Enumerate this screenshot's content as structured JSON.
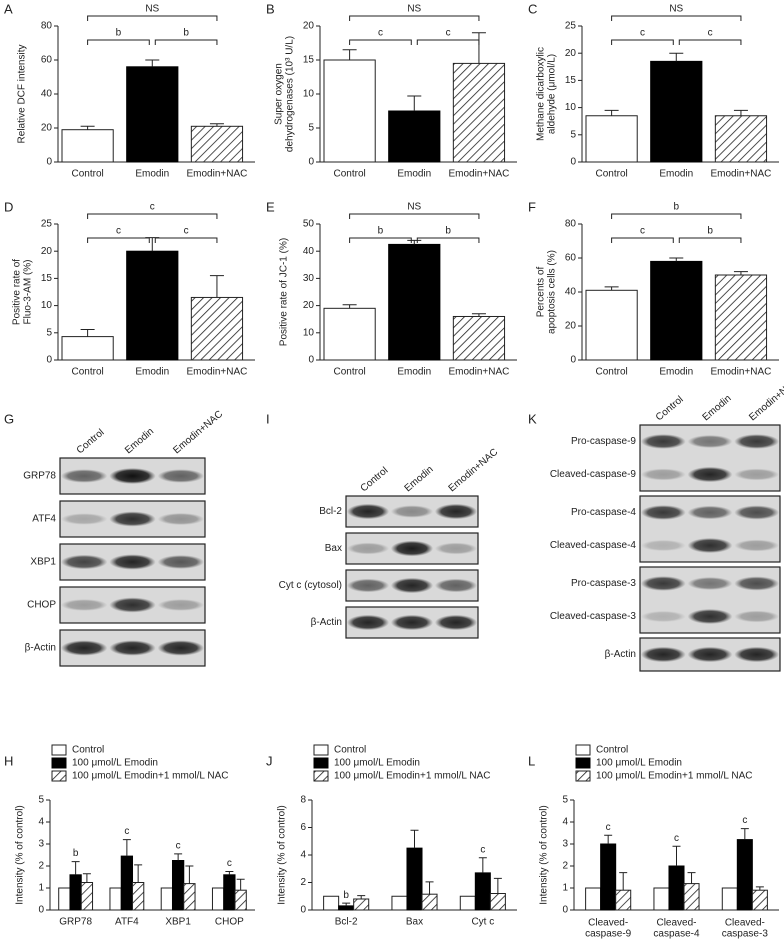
{
  "chart_data": [
    {
      "type": "bar",
      "panel": "A",
      "ylabel": "Relative DCF intensity",
      "categories": [
        "Control",
        "Emodin",
        "Emodin+NAC"
      ],
      "values": [
        19,
        56,
        21
      ],
      "errors": [
        2,
        4,
        1.5
      ],
      "styles": [
        "open",
        "solid",
        "hatched"
      ],
      "ylim": [
        0,
        80
      ],
      "yticks": [
        0,
        20,
        40,
        60,
        80
      ],
      "comparisons": [
        {
          "from": 0,
          "to": 1,
          "label": "b"
        },
        {
          "from": 1,
          "to": 2,
          "label": "b"
        },
        {
          "from": 0,
          "to": 2,
          "label": "NS"
        }
      ]
    },
    {
      "type": "bar",
      "panel": "B",
      "ylabel": "Super oxygen dehydrogenases (10³ U/L)",
      "categories": [
        "Control",
        "Emodin",
        "Emodin+NAC"
      ],
      "values": [
        15,
        7.5,
        14.5
      ],
      "errors": [
        1.5,
        2.2,
        4.5
      ],
      "styles": [
        "open",
        "solid",
        "hatched"
      ],
      "ylim": [
        0,
        20
      ],
      "yticks": [
        0,
        5,
        10,
        15,
        20
      ],
      "comparisons": [
        {
          "from": 0,
          "to": 1,
          "label": "c"
        },
        {
          "from": 1,
          "to": 2,
          "label": "c"
        },
        {
          "from": 0,
          "to": 2,
          "label": "NS"
        }
      ]
    },
    {
      "type": "bar",
      "panel": "C",
      "ylabel": "Methane dicarboxylic aldehyde (μmol/L)",
      "categories": [
        "Control",
        "Emodin",
        "Emodin+NAC"
      ],
      "values": [
        8.5,
        18.5,
        8.5
      ],
      "errors": [
        1,
        1.5,
        1
      ],
      "styles": [
        "open",
        "solid",
        "hatched"
      ],
      "ylim": [
        0,
        25
      ],
      "yticks": [
        0,
        5,
        10,
        15,
        20,
        25
      ],
      "comparisons": [
        {
          "from": 0,
          "to": 1,
          "label": "c"
        },
        {
          "from": 1,
          "to": 2,
          "label": "c"
        },
        {
          "from": 0,
          "to": 2,
          "label": "NS"
        }
      ]
    },
    {
      "type": "bar",
      "panel": "D",
      "ylabel": "Positive rate of Fluo-3-AM (%)",
      "categories": [
        "Control",
        "Emodin",
        "Emodin+NAC"
      ],
      "values": [
        4.3,
        20,
        11.5
      ],
      "errors": [
        1.3,
        2.5,
        4
      ],
      "styles": [
        "open",
        "solid",
        "hatched"
      ],
      "ylim": [
        0,
        25
      ],
      "yticks": [
        0,
        5,
        10,
        15,
        20,
        25
      ],
      "comparisons": [
        {
          "from": 0,
          "to": 1,
          "label": "c"
        },
        {
          "from": 1,
          "to": 2,
          "label": "c"
        },
        {
          "from": 0,
          "to": 2,
          "label": "c"
        }
      ]
    },
    {
      "type": "bar",
      "panel": "E",
      "ylabel": "Positive rate of JC-1 (%)",
      "categories": [
        "Control",
        "Emodin",
        "Emodin+NAC"
      ],
      "values": [
        19,
        42.5,
        16
      ],
      "errors": [
        1.3,
        1.5,
        1
      ],
      "styles": [
        "open",
        "solid",
        "hatched"
      ],
      "ylim": [
        0,
        50
      ],
      "yticks": [
        0,
        10,
        20,
        30,
        40,
        50
      ],
      "comparisons": [
        {
          "from": 0,
          "to": 1,
          "label": "b"
        },
        {
          "from": 1,
          "to": 2,
          "label": "b"
        },
        {
          "from": 0,
          "to": 2,
          "label": "NS"
        }
      ]
    },
    {
      "type": "bar",
      "panel": "F",
      "ylabel": "Percents of apoptosis cells (%)",
      "categories": [
        "Control",
        "Emodin",
        "Emodin+NAC"
      ],
      "values": [
        41,
        58,
        50
      ],
      "errors": [
        2,
        2,
        2
      ],
      "styles": [
        "open",
        "solid",
        "hatched"
      ],
      "ylim": [
        0,
        80
      ],
      "yticks": [
        0,
        20,
        40,
        60,
        80
      ],
      "comparisons": [
        {
          "from": 0,
          "to": 1,
          "label": "c"
        },
        {
          "from": 1,
          "to": 2,
          "label": "b"
        },
        {
          "from": 0,
          "to": 2,
          "label": "b"
        }
      ]
    },
    {
      "type": "grouped_bar",
      "panel": "H",
      "ylabel": "Intensity (% of control)",
      "categories": [
        "GRP78",
        "ATF4",
        "XBP1",
        "CHOP"
      ],
      "ylim": [
        0,
        5
      ],
      "yticks": [
        0,
        1,
        2,
        3,
        4,
        5
      ],
      "series": [
        {
          "name": "Control",
          "style": "open",
          "values": [
            1,
            1,
            1,
            1
          ]
        },
        {
          "name": "100 μmol/L Emodin",
          "style": "solid",
          "values": [
            1.6,
            2.45,
            2.25,
            1.6
          ],
          "errors": [
            0.6,
            0.75,
            0.3,
            0.15
          ],
          "labels": [
            "b",
            "c",
            "c",
            "c"
          ]
        },
        {
          "name": "100 μmol/L Emodin+1 mmol/L NAC",
          "style": "hatched",
          "values": [
            1.25,
            1.25,
            1.2,
            0.9
          ],
          "errors": [
            0.4,
            0.8,
            0.8,
            0.5
          ]
        }
      ]
    },
    {
      "type": "grouped_bar",
      "panel": "J",
      "ylabel": "Intensity (% of control)",
      "categories": [
        "Bcl-2",
        "Bax",
        "Cyt c"
      ],
      "ylim": [
        0,
        8
      ],
      "yticks": [
        0,
        2,
        4,
        6,
        8
      ],
      "series": [
        {
          "name": "Control",
          "style": "open",
          "values": [
            1,
            1,
            1
          ]
        },
        {
          "name": "100 μmol/L Emodin",
          "style": "solid",
          "values": [
            0.3,
            4.5,
            2.7
          ],
          "errors": [
            0.2,
            1.3,
            1.1
          ],
          "labels": [
            "b",
            null,
            "c"
          ]
        },
        {
          "name": "100 μmol/L Emodin+1 mmol/L NAC",
          "style": "hatched",
          "values": [
            0.8,
            1.15,
            1.2
          ],
          "errors": [
            0.25,
            0.9,
            1.1
          ]
        }
      ]
    },
    {
      "type": "grouped_bar",
      "panel": "L",
      "ylabel": "Intensity (% of control)",
      "categories": [
        "Cleaved-caspase-9",
        "Cleaved-caspase-4",
        "Cleaved-caspase-3"
      ],
      "ylim": [
        0,
        5
      ],
      "yticks": [
        0,
        1,
        2,
        3,
        4,
        5
      ],
      "series": [
        {
          "name": "Control",
          "style": "open",
          "values": [
            1,
            1,
            1
          ]
        },
        {
          "name": "100 μmol/L Emodin",
          "style": "solid",
          "values": [
            3,
            2,
            3.2
          ],
          "errors": [
            0.4,
            0.9,
            0.5
          ],
          "labels": [
            "c",
            "c",
            "c"
          ]
        },
        {
          "name": "100 μmol/L Emodin+1 mmol/L NAC",
          "style": "hatched",
          "values": [
            0.9,
            1.2,
            0.9
          ],
          "errors": [
            0.8,
            0.5,
            0.15
          ]
        }
      ]
    }
  ],
  "blots": [
    {
      "panel": "G",
      "lanes": [
        "Control",
        "Emodin",
        "Emodin+NAC"
      ],
      "boxes": [
        [
          "GRP78"
        ],
        [
          "ATF4"
        ],
        [
          "XBP1"
        ],
        [
          "CHOP"
        ],
        [
          "β-Actin"
        ]
      ]
    },
    {
      "panel": "I",
      "lanes": [
        "Control",
        "Emodin",
        "Emodin+NAC"
      ],
      "boxes": [
        [
          "Bcl-2"
        ],
        [
          "Bax"
        ],
        [
          "Cyt c (cytosol)"
        ],
        [
          "β-Actin"
        ]
      ]
    },
    {
      "panel": "K",
      "lanes": [
        "Control",
        "Emodin",
        "Emodin+NAC"
      ],
      "boxes": [
        [
          "Pro-caspase-9",
          "Cleaved-caspase-9"
        ],
        [
          "Pro-caspase-4",
          "Cleaved-caspase-4"
        ],
        [
          "Pro-caspase-3",
          "Cleaved-caspase-3"
        ],
        [
          "β-Actin"
        ]
      ]
    }
  ]
}
